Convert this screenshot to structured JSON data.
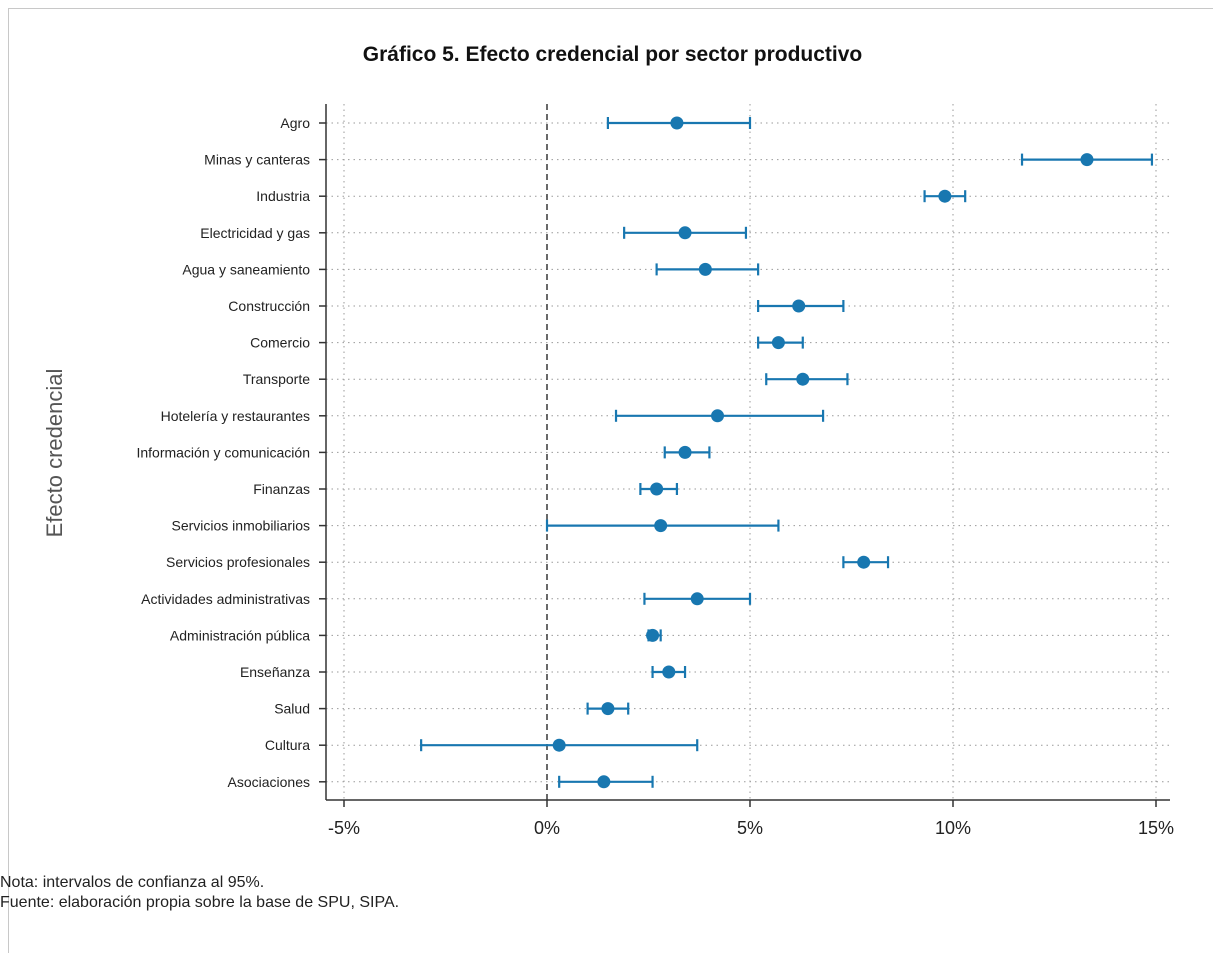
{
  "chart_data": {
    "type": "scatter",
    "subtype": "coefficient plot with 95% confidence intervals",
    "title": "Gráfico 5. Efecto credencial por sector productivo",
    "ylabel": "Efecto credencial",
    "xlabel": "",
    "xlim": [
      -5.5,
      15.5
    ],
    "x_ticks": [
      {
        "value": -5,
        "label": "-5%"
      },
      {
        "value": 0,
        "label": "0%"
      },
      {
        "value": 5,
        "label": "5%"
      },
      {
        "value": 10,
        "label": "10%"
      },
      {
        "value": 15,
        "label": "15%"
      }
    ],
    "reference_line": 0,
    "grid": "dotted",
    "color": "#1877b0",
    "categories": [
      "Agro",
      "Minas y canteras",
      "Industria",
      "Electricidad y gas",
      "Agua y saneamiento",
      "Construcción",
      "Comercio",
      "Transporte",
      "Hotelería y restaurantes",
      "Información y comunicación",
      "Finanzas",
      "Servicios inmobiliarios",
      "Servicios profesionales",
      "Actividades administrativas",
      "Administración pública",
      "Enseñanza",
      "Salud",
      "Cultura",
      "Asociaciones"
    ],
    "estimates": [
      3.2,
      13.3,
      9.8,
      3.4,
      3.9,
      6.2,
      5.7,
      6.3,
      4.2,
      3.4,
      2.7,
      2.8,
      7.8,
      3.7,
      2.6,
      3.0,
      1.5,
      0.3,
      1.4
    ],
    "ci_lower": [
      1.5,
      11.7,
      9.3,
      1.9,
      2.7,
      5.2,
      5.2,
      5.4,
      1.7,
      2.9,
      2.3,
      0.0,
      7.3,
      2.4,
      2.5,
      2.6,
      1.0,
      -3.1,
      0.3
    ],
    "ci_upper": [
      5.0,
      14.9,
      10.3,
      4.9,
      5.2,
      7.3,
      6.3,
      7.4,
      6.8,
      4.0,
      3.2,
      5.7,
      8.4,
      5.0,
      2.8,
      3.4,
      2.0,
      3.7,
      2.6
    ]
  },
  "notes": {
    "line1": "Nota: intervalos de confianza al 95%.",
    "line2": "Fuente: elaboración propia sobre la base de SPU, SIPA."
  }
}
